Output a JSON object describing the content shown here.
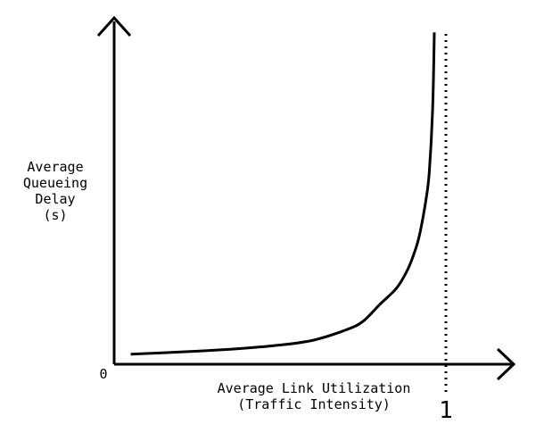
{
  "chart_data": {
    "type": "line",
    "title": "",
    "ylabel_lines": [
      "Average",
      "Queueing",
      "Delay",
      "(s)"
    ],
    "xlabel_lines": [
      "Average Link Utilization",
      "(Traffic Intensity)"
    ],
    "origin_label": "0",
    "x_tick_label": "1",
    "xlim": [
      0,
      1
    ],
    "asymptote_x": 1,
    "grid": false,
    "legend": "none",
    "series": [
      {
        "x": [
          0.05,
          0.2,
          0.35,
          0.5,
          0.6,
          0.7,
          0.75,
          0.8,
          0.85,
          0.88,
          0.9,
          0.92,
          0.94,
          0.95,
          0.96,
          0.965
        ],
        "y": [
          0.03,
          0.06,
          0.1,
          0.16,
          0.23,
          0.38,
          0.5,
          0.74,
          0.97,
          1.2,
          1.42,
          1.73,
          2.25,
          2.65,
          3.55,
          4.65
        ]
      }
    ],
    "colors": {
      "axis": "#000000",
      "curve": "#000000",
      "background": "#ffffff"
    }
  }
}
